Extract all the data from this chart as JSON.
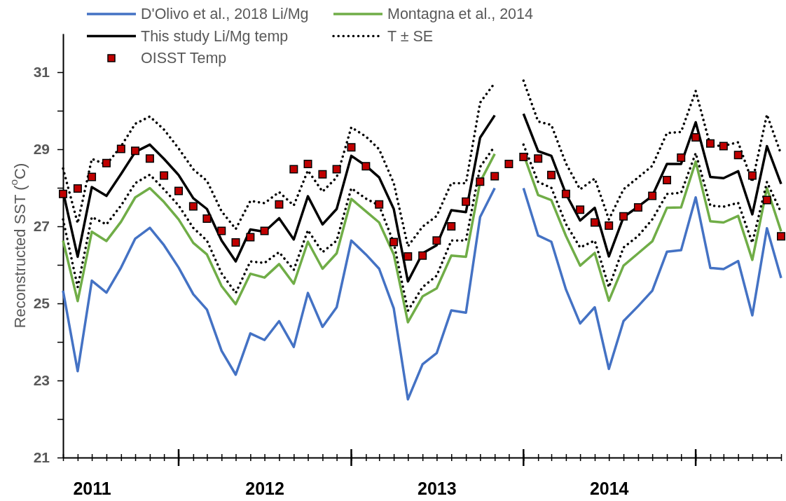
{
  "chart_data": {
    "type": "line",
    "ylabel": "Reconstructed SST ($^{o}$C)",
    "legend": "top",
    "x": [
      "2011-05",
      "2011-06",
      "2011-07",
      "2011-08",
      "2011-09",
      "2011-10",
      "2011-11",
      "2011-12",
      "2012-01",
      "2012-02",
      "2012-03",
      "2012-04",
      "2012-05",
      "2012-06",
      "2012-07",
      "2012-08",
      "2012-09",
      "2012-10",
      "2012-11",
      "2012-12",
      "2013-01",
      "2013-02",
      "2013-03",
      "2013-04",
      "2013-05",
      "2013-06",
      "2013-07",
      "2013-08",
      "2013-09",
      "2013-10",
      "2013-11",
      "2013-12",
      "2014-01",
      "2014-02",
      "2014-03",
      "2014-04",
      "2014-05",
      "2014-06",
      "2014-07",
      "2014-08",
      "2014-09",
      "2014-10",
      "2014-11",
      "2014-12",
      "2015-01",
      "2015-02",
      "2015-03",
      "2015-04",
      "2015-05",
      "2015-06",
      "2015-07"
    ],
    "xlim": [
      "2011-05",
      "2015-07"
    ],
    "xticks": [
      {
        "value": "2011-05",
        "label": null
      },
      {
        "value": "2011-06",
        "label": null
      },
      {
        "value": "2011-07",
        "label": "2011"
      },
      {
        "value": "2011-08",
        "label": null
      },
      {
        "value": "2011-09",
        "label": null
      },
      {
        "value": "2011-10",
        "label": null
      },
      {
        "value": "2011-11",
        "label": null
      },
      {
        "value": "2011-12",
        "label": null
      },
      {
        "value": "2012-01",
        "label": null
      },
      {
        "value": "2012-02",
        "label": null
      },
      {
        "value": "2012-03",
        "label": null
      },
      {
        "value": "2012-04",
        "label": null
      },
      {
        "value": "2012-05",
        "label": null
      },
      {
        "value": "2012-06",
        "label": null
      },
      {
        "value": "2012-07",
        "label": "2012"
      },
      {
        "value": "2012-08",
        "label": null
      },
      {
        "value": "2012-09",
        "label": null
      },
      {
        "value": "2012-10",
        "label": null
      },
      {
        "value": "2012-11",
        "label": null
      },
      {
        "value": "2012-12",
        "label": null
      },
      {
        "value": "2013-01",
        "label": null
      },
      {
        "value": "2013-02",
        "label": null
      },
      {
        "value": "2013-03",
        "label": null
      },
      {
        "value": "2013-04",
        "label": null
      },
      {
        "value": "2013-05",
        "label": null
      },
      {
        "value": "2013-06",
        "label": null
      },
      {
        "value": "2013-07",
        "label": "2013"
      },
      {
        "value": "2013-08",
        "label": null
      },
      {
        "value": "2013-09",
        "label": null
      },
      {
        "value": "2013-10",
        "label": null
      },
      {
        "value": "2013-11",
        "label": null
      },
      {
        "value": "2013-12",
        "label": null
      },
      {
        "value": "2014-01",
        "label": null
      },
      {
        "value": "2014-02",
        "label": null
      },
      {
        "value": "2014-03",
        "label": null
      },
      {
        "value": "2014-04",
        "label": null
      },
      {
        "value": "2014-05",
        "label": null
      },
      {
        "value": "2014-06",
        "label": null
      },
      {
        "value": "2014-07",
        "label": "2014"
      },
      {
        "value": "2014-08",
        "label": null
      },
      {
        "value": "2014-09",
        "label": null
      },
      {
        "value": "2014-10",
        "label": null
      },
      {
        "value": "2014-11",
        "label": null
      },
      {
        "value": "2014-12",
        "label": null
      },
      {
        "value": "2015-01",
        "label": null
      },
      {
        "value": "2015-02",
        "label": null
      },
      {
        "value": "2015-03",
        "label": null
      },
      {
        "value": "2015-04",
        "label": null
      },
      {
        "value": "2015-05",
        "label": null
      },
      {
        "value": "2015-06",
        "label": null
      },
      {
        "value": "2015-07",
        "label": null
      }
    ],
    "ylim": [
      21,
      32
    ],
    "yticks": [
      21,
      {
        "value": 22,
        "label": null
      },
      23,
      {
        "value": 24,
        "label": null
      },
      25,
      {
        "value": 26,
        "label": null
      },
      27,
      {
        "value": 28,
        "label": null
      },
      29,
      {
        "value": 30,
        "label": null
      },
      31
    ],
    "series": [
      {
        "name": "D'Olivo et al., 2018 Li/Mg",
        "color": "#4472c4",
        "values": [
          25.33,
          23.24,
          25.59,
          25.28,
          25.93,
          26.68,
          26.96,
          26.51,
          25.93,
          25.24,
          24.84,
          23.77,
          23.15,
          24.22,
          24.05,
          24.54,
          23.87,
          25.27,
          24.39,
          24.9,
          26.63,
          26.27,
          25.9,
          24.87,
          22.51,
          23.42,
          23.71,
          24.82,
          24.76,
          27.24,
          27.99,
          null,
          27.99,
          26.76,
          26.6,
          25.36,
          24.48,
          24.9,
          23.3,
          24.54,
          24.93,
          25.33,
          26.34,
          26.38,
          27.75,
          25.92,
          25.89,
          26.1,
          24.69,
          26.95,
          25.66
        ]
      },
      {
        "name": "Montagna et al., 2014",
        "color": "#70ad47",
        "values": [
          26.63,
          25.06,
          26.86,
          26.62,
          27.12,
          27.75,
          27.99,
          27.63,
          27.18,
          26.57,
          26.27,
          25.45,
          24.98,
          25.77,
          25.67,
          26.02,
          25.51,
          26.6,
          25.9,
          26.3,
          27.71,
          27.39,
          27.1,
          26.27,
          24.51,
          25.18,
          25.39,
          26.24,
          26.21,
          28.15,
          28.88,
          null,
          28.87,
          27.81,
          27.68,
          26.75,
          25.98,
          26.31,
          25.07,
          25.98,
          26.3,
          26.61,
          27.48,
          27.49,
          28.68,
          27.13,
          27.1,
          27.27,
          26.13,
          27.99,
          26.87
        ]
      },
      {
        "name": "This study Li/Mg temp",
        "color": "#000000",
        "values": [
          27.9,
          26.21,
          28.02,
          27.79,
          28.36,
          28.93,
          29.12,
          28.75,
          28.33,
          27.73,
          27.45,
          26.63,
          26.09,
          26.92,
          26.86,
          27.21,
          26.66,
          27.78,
          27.05,
          27.45,
          28.83,
          28.57,
          28.27,
          27.45,
          25.57,
          26.3,
          26.51,
          27.42,
          27.37,
          29.3,
          29.88,
          null,
          29.92,
          28.95,
          28.83,
          27.84,
          27.15,
          27.48,
          26.22,
          27.24,
          27.51,
          27.79,
          28.62,
          28.62,
          29.7,
          28.28,
          28.25,
          28.43,
          27.31,
          29.08,
          28.1
        ]
      },
      {
        "name": "T ± SE",
        "color": "#000000",
        "line_style": "dotted",
        "values": [
          28.5,
          27.08,
          28.75,
          28.6,
          29.08,
          29.66,
          29.85,
          29.51,
          29.02,
          28.48,
          28.18,
          27.39,
          26.93,
          27.66,
          27.6,
          27.89,
          27.54,
          28.45,
          27.9,
          28.27,
          29.57,
          29.33,
          29.0,
          28.12,
          26.48,
          26.99,
          27.27,
          28.12,
          28.12,
          30.21,
          30.72,
          null,
          30.78,
          29.72,
          29.63,
          28.63,
          27.96,
          28.24,
          27.18,
          27.96,
          28.27,
          28.57,
          29.42,
          29.45,
          30.51,
          29.09,
          29.09,
          29.18,
          28.15,
          29.9,
          28.87
        ]
      },
      {
        "color": "#000000",
        "line_style": "dotted",
        "values": [
          27.18,
          25.42,
          27.24,
          27.05,
          27.54,
          28.12,
          28.34,
          27.96,
          27.54,
          26.96,
          26.63,
          25.78,
          25.27,
          26.09,
          26.05,
          26.33,
          25.87,
          26.9,
          26.33,
          26.63,
          27.99,
          27.72,
          27.54,
          26.57,
          24.81,
          25.42,
          25.72,
          26.63,
          26.63,
          28.54,
          29.08,
          null,
          29.12,
          28.15,
          28.0,
          27.06,
          26.45,
          26.63,
          25.42,
          26.45,
          26.75,
          27.18,
          27.84,
          27.87,
          28.9,
          27.54,
          27.51,
          27.61,
          26.57,
          28.15,
          27.36
        ]
      },
      {
        "name": "OISST Temp",
        "type": "scatter",
        "marker": "square",
        "color": "#c00000",
        "values": [
          27.84,
          27.98,
          28.28,
          28.64,
          29.01,
          28.96,
          28.76,
          28.32,
          27.92,
          27.52,
          27.2,
          26.88,
          26.58,
          26.72,
          26.88,
          27.57,
          28.48,
          28.62,
          28.35,
          28.48,
          29.05,
          28.56,
          27.57,
          26.59,
          26.22,
          26.24,
          26.63,
          27.0,
          27.64,
          28.16,
          28.3,
          28.62,
          28.8,
          28.76,
          28.33,
          27.84,
          27.43,
          27.1,
          27.02,
          27.26,
          27.49,
          27.79,
          28.2,
          28.78,
          29.31,
          29.15,
          29.08,
          28.85,
          28.32,
          27.68,
          26.74
        ]
      }
    ]
  }
}
